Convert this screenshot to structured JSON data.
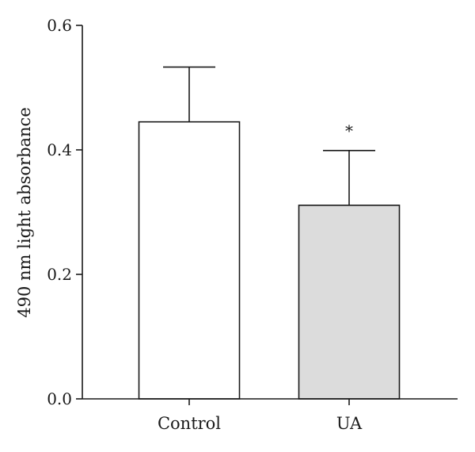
{
  "chart_data": {
    "type": "bar",
    "title": "",
    "xlabel": "",
    "ylabel": "490 nm light absorbance",
    "categories": [
      "Control",
      "UA"
    ],
    "values": [
      0.445,
      0.311
    ],
    "error": [
      0.088,
      0.088
    ],
    "ylim": [
      0.0,
      0.6
    ],
    "yticks": [
      0.0,
      0.2,
      0.4,
      0.6
    ],
    "ytick_labels": [
      "0.0",
      "0.2",
      "0.4",
      "0.6"
    ],
    "annotations": [
      {
        "category": "UA",
        "text": "*"
      }
    ],
    "bar_colors": [
      "#ffffff",
      "#dcdcdc"
    ],
    "grid": false,
    "legend": "none"
  }
}
